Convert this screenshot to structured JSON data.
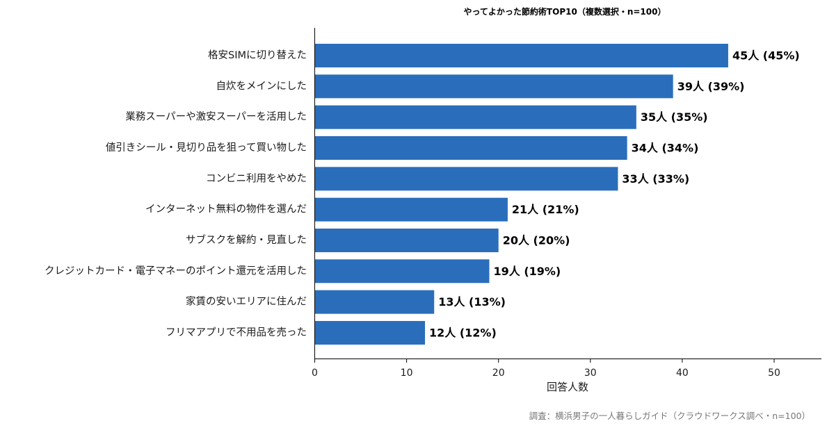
{
  "chart_data": {
    "type": "bar",
    "orientation": "horizontal",
    "title": "やってよかった節約術TOP10（複数選択・n=100）",
    "categories": [
      "格安SIMに切り替えた",
      "自炊をメインにした",
      "業務スーパーや激安スーパーを活用した",
      "値引きシール・見切り品を狙って買い物した",
      "コンビニ利用をやめた",
      "インターネット無料の物件を選んだ",
      "サブスクを解約・見直した",
      "クレジットカード・電子マネーのポイント還元を活用した",
      "家賃の安いエリアに住んだ",
      "フリマアプリで不用品を売った"
    ],
    "values": [
      45,
      39,
      35,
      34,
      33,
      21,
      20,
      19,
      13,
      12
    ],
    "data_labels": [
      "45人 (45%)",
      "39人 (39%)",
      "35人 (35%)",
      "34人 (34%)",
      "33人 (33%)",
      "21人 (21%)",
      "20人 (20%)",
      "19人 (19%)",
      "13人 (13%)",
      "12人 (12%)"
    ],
    "xlabel": "回答人数",
    "ylabel": "",
    "xlim": [
      0,
      55
    ],
    "xticks": [
      "0",
      "10",
      "20",
      "30",
      "40",
      "50"
    ],
    "grid": false,
    "legend": "none",
    "bar_color": "#2a6ebb",
    "source": "調査：横浜男子の一人暮らしガイド（クラウドワークス調べ・n=100）"
  }
}
